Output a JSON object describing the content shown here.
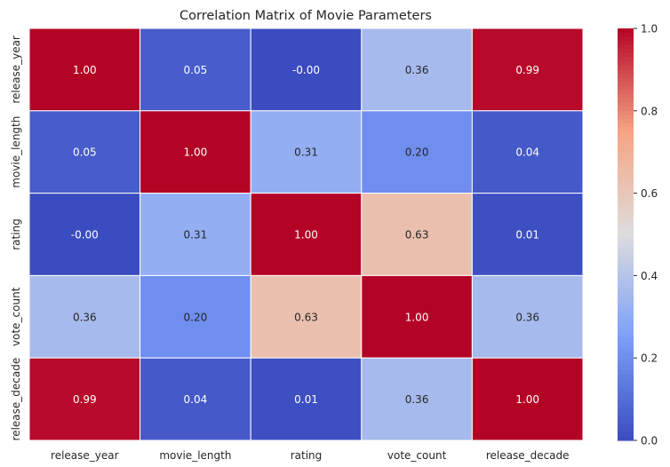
{
  "chart_data": {
    "type": "heatmap",
    "title": "Correlation Matrix of Movie Parameters",
    "xlabel": "",
    "ylabel": "",
    "x_categories": [
      "release_year",
      "movie_length",
      "rating",
      "vote_count",
      "release_decade"
    ],
    "y_categories": [
      "release_year",
      "movie_length",
      "rating",
      "vote_count",
      "release_decade"
    ],
    "values": [
      [
        1.0,
        0.05,
        -0.0,
        0.36,
        0.99
      ],
      [
        0.05,
        1.0,
        0.31,
        0.2,
        0.04
      ],
      [
        -0.0,
        0.31,
        1.0,
        0.63,
        0.01
      ],
      [
        0.36,
        0.2,
        0.63,
        1.0,
        0.36
      ],
      [
        0.99,
        0.04,
        0.01,
        0.36,
        1.0
      ]
    ],
    "value_labels": [
      [
        "1.00",
        "0.05",
        "-0.00",
        "0.36",
        "0.99"
      ],
      [
        "0.05",
        "1.00",
        "0.31",
        "0.20",
        "0.04"
      ],
      [
        "-0.00",
        "0.31",
        "1.00",
        "0.63",
        "0.01"
      ],
      [
        "0.36",
        "0.20",
        "0.63",
        "1.00",
        "0.36"
      ],
      [
        "0.99",
        "0.04",
        "0.01",
        "0.36",
        "1.00"
      ]
    ],
    "colormap": "coolwarm",
    "colorbar": {
      "range": [
        0.0,
        1.0
      ],
      "ticks": [
        "0.0",
        "0.2",
        "0.4",
        "0.6",
        "0.8",
        "1.0"
      ]
    },
    "grid": false,
    "cell_border_color": "#ffffff"
  }
}
